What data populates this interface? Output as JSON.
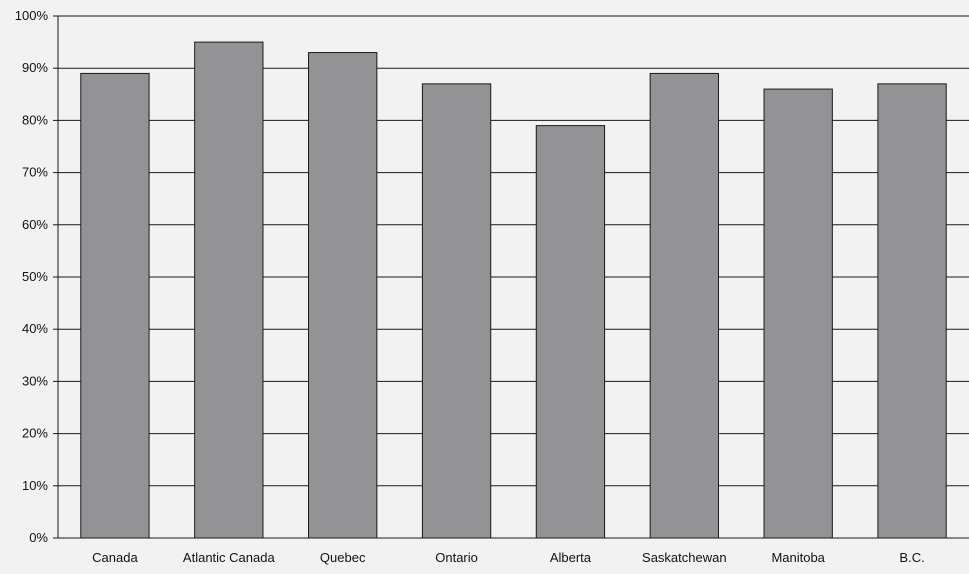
{
  "chart_data": {
    "type": "bar",
    "title": "",
    "xlabel": "",
    "ylabel": "",
    "categories": [
      "Canada",
      "Atlantic Canada",
      "Quebec",
      "Ontario",
      "Alberta",
      "Saskatchewan",
      "Manitoba",
      "B.C."
    ],
    "values": [
      89,
      95,
      93,
      87,
      79,
      89,
      86,
      87
    ],
    "ylim": [
      0,
      100
    ],
    "y_ticks": [
      0,
      10,
      20,
      30,
      40,
      50,
      60,
      70,
      80,
      90,
      100
    ],
    "y_tick_labels": [
      "0%",
      "10%",
      "20%",
      "30%",
      "40%",
      "50%",
      "60%",
      "70%",
      "80%",
      "90%",
      "100%"
    ],
    "grid": true,
    "legend": "none",
    "colors": {
      "bar_fill": "#939396",
      "bar_stroke": "#1a1a1a",
      "grid": "#1a1a1a",
      "background": "#f2f2f3"
    }
  }
}
